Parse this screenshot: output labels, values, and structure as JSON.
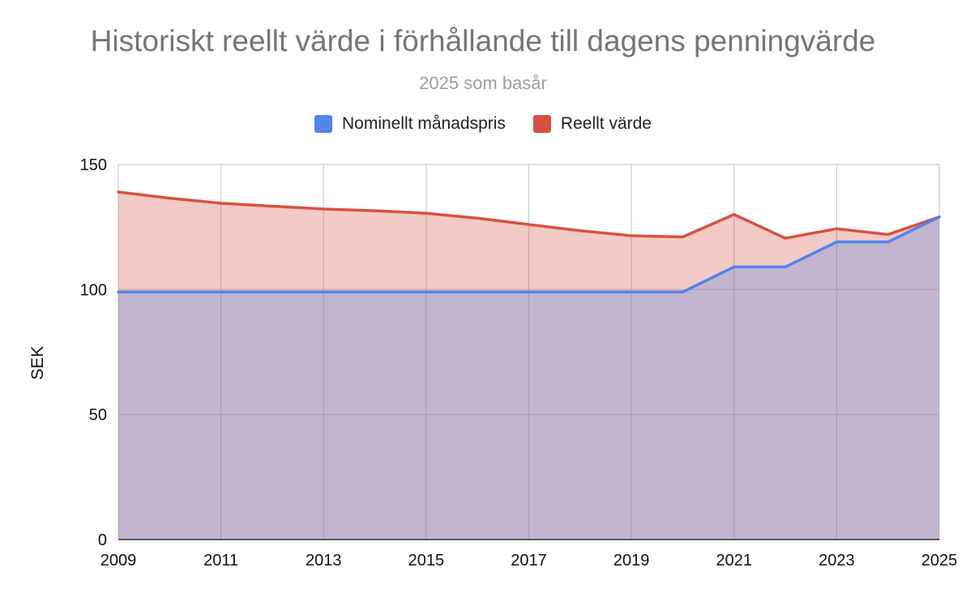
{
  "chart_data": {
    "type": "area",
    "title": "Historiskt reellt värde i förhållande till dagens penningvärde",
    "subtitle": "2025 som basår",
    "xlabel": "",
    "ylabel": "SEK",
    "x": [
      2009,
      2010,
      2011,
      2012,
      2013,
      2014,
      2015,
      2016,
      2017,
      2018,
      2019,
      2020,
      2021,
      2022,
      2023,
      2024,
      2025
    ],
    "x_ticks": [
      "2009",
      "2011",
      "2013",
      "2015",
      "2017",
      "2019",
      "2021",
      "2023",
      "2025"
    ],
    "y_ticks": [
      "0",
      "50",
      "100",
      "150"
    ],
    "ylim": [
      0,
      150
    ],
    "grid": true,
    "legend_position": "top",
    "series": [
      {
        "name": "Nominellt månadspris",
        "color": "#5383ec",
        "fill": "rgba(83,131,236,0.30)",
        "values": [
          99,
          99,
          99,
          99,
          99,
          99,
          99,
          99,
          99,
          99,
          99,
          99,
          109,
          109,
          119,
          119,
          129
        ]
      },
      {
        "name": "Reellt värde",
        "color": "#d85140",
        "fill": "rgba(216,81,64,0.30)",
        "values": [
          139,
          136.5,
          134.5,
          133.3,
          132.2,
          131.5,
          130.5,
          128.5,
          126,
          123.5,
          121.5,
          121,
          130,
          120.5,
          124.3,
          122,
          129
        ]
      }
    ]
  }
}
